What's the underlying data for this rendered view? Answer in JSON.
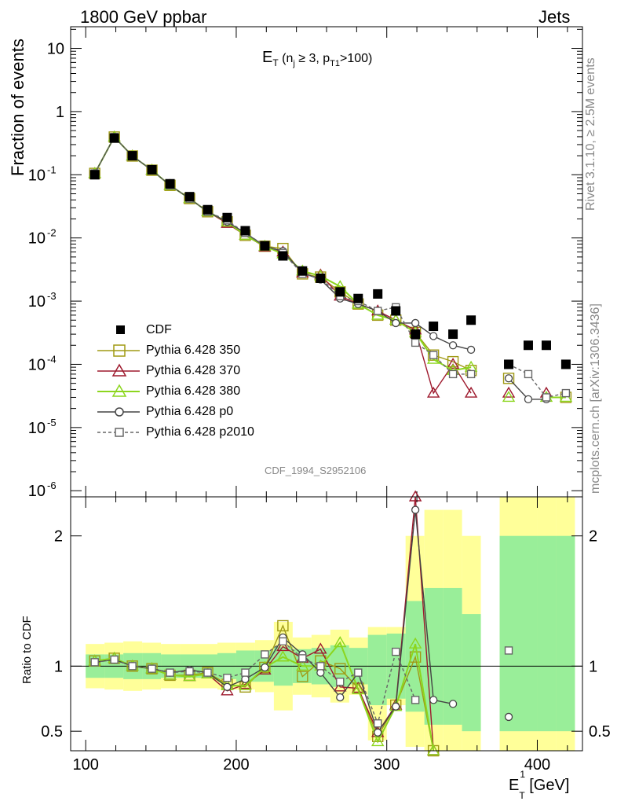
{
  "header": {
    "left_label": "1800 GeV ppbar",
    "right_label": "Jets"
  },
  "side": {
    "rivet": "Rivet 3.1.10, ≥ 2.5M events",
    "mcplots": "mcplots.cern.ch [arXiv:1306.3436]"
  },
  "chart_data": [
    {
      "type": "line",
      "panel": "main",
      "title": "E_T (n_j ≥ 3, p_T1 >100)",
      "title_parts": {
        "main": "E",
        "sub1": "T",
        "paren_open": " (n",
        "sub2": "j",
        "mid": " ≥ 3, p",
        "sub3": "T1",
        "close": ">100)"
      },
      "ylabel": "Fraction of events",
      "watermark": "CDF_1994_S2952106",
      "ylog": true,
      "ylim": [
        8e-07,
        22
      ],
      "xlim": [
        90,
        430
      ],
      "yticks": [
        {
          "v": 10,
          "label": "10"
        },
        {
          "v": 1,
          "label": "1"
        },
        {
          "v": 0.1,
          "label": "10",
          "exp": "-1"
        },
        {
          "v": 0.01,
          "label": "10",
          "exp": "-2"
        },
        {
          "v": 0.001,
          "label": "10",
          "exp": "-3"
        },
        {
          "v": 0.0001,
          "label": "10",
          "exp": "-4"
        },
        {
          "v": 1e-05,
          "label": "10",
          "exp": "-5"
        },
        {
          "v": 1e-06,
          "label": "10",
          "exp": "-6"
        }
      ],
      "x": [
        106,
        119,
        131,
        144,
        156,
        169,
        181,
        194,
        206,
        219,
        231,
        244,
        256,
        269,
        281,
        294,
        306,
        319,
        331,
        344,
        356,
        369,
        381,
        394,
        406,
        419
      ],
      "data": {
        "name": "CDF",
        "values": [
          0.1,
          0.38,
          0.2,
          0.12,
          0.072,
          0.045,
          0.028,
          0.021,
          0.013,
          0.0075,
          0.0052,
          0.003,
          0.0023,
          0.0014,
          0.0011,
          0.0013,
          0.0007,
          0.0003,
          0.0004,
          0.0003,
          0.0005,
          null,
          0.0001,
          0.0002,
          0.0002,
          0.0001
        ]
      },
      "series": [
        {
          "name": "Pythia 6.428 350",
          "color": "#a09a14",
          "marker": "square-open",
          "dash": false,
          "values": [
            0.105,
            0.395,
            0.198,
            0.118,
            0.068,
            0.042,
            0.026,
            0.018,
            0.011,
            0.0074,
            0.0068,
            0.0027,
            0.0024,
            0.0014,
            0.0009,
            0.0006,
            0.0005,
            0.00032,
            0.00014,
            0.00011,
            8e-05,
            null,
            6e-05,
            null,
            null,
            3e-05
          ]
        },
        {
          "name": "Pythia 6.428 370",
          "color": "#9e1a2e",
          "marker": "triangle-open",
          "dash": false,
          "values": [
            0.105,
            0.395,
            0.198,
            0.118,
            0.068,
            0.042,
            0.026,
            0.017,
            0.011,
            0.0072,
            0.006,
            0.0028,
            0.0026,
            0.0012,
            0.0009,
            0.0007,
            0.0005,
            0.00035,
            3.5e-05,
            0.0001,
            3.5e-05,
            null,
            3.5e-05,
            null,
            3.5e-05,
            null
          ]
        },
        {
          "name": "Pythia 6.428 380",
          "color": "#8cd61e",
          "marker": "triangle-open",
          "dash": false,
          "values": [
            0.105,
            0.395,
            0.198,
            0.118,
            0.068,
            0.042,
            0.026,
            0.018,
            0.011,
            0.0074,
            0.0056,
            0.003,
            0.0025,
            0.0017,
            0.0009,
            0.0006,
            0.0005,
            0.00032,
            0.00012,
            8e-05,
            9e-05,
            null,
            3e-05,
            null,
            3e-05,
            3e-05
          ]
        },
        {
          "name": "Pythia 6.428 p0",
          "color": "#444444",
          "marker": "circle-open",
          "dash": false,
          "values": [
            0.105,
            0.395,
            0.198,
            0.118,
            0.068,
            0.042,
            0.026,
            0.018,
            0.012,
            0.0074,
            0.0062,
            0.0028,
            0.0022,
            0.0011,
            0.0009,
            0.0007,
            0.00045,
            0.00045,
            0.00028,
            0.0002,
            0.00017,
            null,
            6e-05,
            2.8e-05,
            2.8e-05,
            null
          ]
        },
        {
          "name": "Pythia 6.428 p2010",
          "color": "#666666",
          "marker": "square-open",
          "dash": true,
          "values": [
            0.105,
            0.395,
            0.198,
            0.118,
            0.068,
            0.042,
            0.026,
            0.019,
            0.012,
            0.0076,
            0.0058,
            0.0027,
            0.0023,
            0.0012,
            0.001,
            0.0007,
            0.0008,
            0.00022,
            0.00014,
            7e-05,
            7e-05,
            null,
            0.0001,
            7e-05,
            3e-05,
            3.5e-05
          ]
        }
      ]
    },
    {
      "type": "line",
      "panel": "ratio",
      "ylabel": "Ratio to CDF",
      "xlabel": "E_T^1 [GeV]",
      "xlabel_parts": {
        "main": "E",
        "sup": "1",
        "sub": "T",
        "unit": " [GeV]"
      },
      "ylim": [
        0.35,
        2.3
      ],
      "xlim": [
        90,
        430
      ],
      "xticks": [
        100,
        200,
        300,
        400
      ],
      "yticks": [
        {
          "v": 0.5,
          "label": "0.5"
        },
        {
          "v": 1,
          "label": "1"
        },
        {
          "v": 2,
          "label": "2"
        }
      ],
      "band_edges": [
        100,
        112.5,
        125,
        137.5,
        150,
        162.5,
        175,
        187.5,
        200,
        212.5,
        225,
        237.5,
        250,
        262.5,
        275,
        287.5,
        300,
        312.5,
        325,
        337.5,
        350,
        362.5,
        375,
        387.5,
        400,
        412.5,
        425
      ],
      "band_yellow": [
        [
          0.83,
          1.17
        ],
        [
          0.82,
          1.18
        ],
        [
          0.81,
          1.19
        ],
        [
          0.82,
          1.18
        ],
        [
          0.83,
          1.17
        ],
        [
          0.83,
          1.17
        ],
        [
          0.83,
          1.17
        ],
        [
          0.82,
          1.18
        ],
        [
          0.82,
          1.18
        ],
        [
          0.8,
          1.2
        ],
        [
          0.66,
          1.34
        ],
        [
          0.78,
          1.22
        ],
        [
          0.76,
          1.24
        ],
        [
          0.72,
          1.28
        ],
        [
          0.78,
          1.22
        ],
        [
          0.43,
          1.3
        ],
        [
          0.7,
          1.3
        ],
        [
          0.38,
          2.0
        ],
        [
          0.35,
          2.2
        ],
        [
          0.35,
          2.2
        ],
        [
          0.35,
          2.0
        ],
        [
          null,
          null
        ],
        [
          0.35,
          2.3
        ],
        [
          0.35,
          2.3
        ],
        [
          0.35,
          2.3
        ],
        [
          0.35,
          2.3
        ]
      ],
      "band_green": [
        [
          0.91,
          1.09
        ],
        [
          0.91,
          1.09
        ],
        [
          0.9,
          1.1
        ],
        [
          0.9,
          1.1
        ],
        [
          0.91,
          1.09
        ],
        [
          0.91,
          1.09
        ],
        [
          0.91,
          1.09
        ],
        [
          0.9,
          1.1
        ],
        [
          0.88,
          1.12
        ],
        [
          0.88,
          1.12
        ],
        [
          0.85,
          1.15
        ],
        [
          0.87,
          1.13
        ],
        [
          0.86,
          1.14
        ],
        [
          0.84,
          1.16
        ],
        [
          0.86,
          1.14
        ],
        [
          0.7,
          1.24
        ],
        [
          0.75,
          1.25
        ],
        [
          0.65,
          1.5
        ],
        [
          0.55,
          1.6
        ],
        [
          0.55,
          1.6
        ],
        [
          0.5,
          1.4
        ],
        [
          null,
          null
        ],
        [
          0.5,
          2.0
        ],
        [
          0.5,
          2.0
        ],
        [
          0.5,
          2.0
        ],
        [
          0.5,
          2.0
        ]
      ],
      "series": [
        {
          "name": "Pythia 6.428 350",
          "values": [
            1.04,
            1.06,
            1.0,
            0.98,
            0.93,
            0.93,
            0.95,
            0.86,
            0.84,
            0.99,
            1.31,
            0.92,
            1.04,
            0.98,
            0.83,
            0.46,
            0.7,
            1.07,
            0.35,
            null,
            null,
            null,
            null,
            null,
            null,
            null
          ]
        },
        {
          "name": "Pythia 6.428 370",
          "values": [
            1.04,
            1.06,
            1.0,
            0.98,
            0.93,
            0.92,
            0.94,
            0.81,
            0.86,
            0.97,
            1.15,
            1.06,
            1.13,
            0.84,
            0.83,
            0.49,
            0.7,
            2.3,
            0.35,
            null,
            null,
            null,
            null,
            null,
            null,
            null
          ]
        },
        {
          "name": "Pythia 6.428 380",
          "values": [
            1.04,
            1.06,
            1.0,
            0.98,
            0.93,
            0.92,
            0.94,
            0.85,
            0.85,
            0.99,
            1.07,
            1.0,
            1.0,
            1.18,
            0.82,
            0.42,
            0.69,
            1.17,
            0.35,
            null,
            null,
            null,
            null,
            null,
            null,
            null
          ]
        },
        {
          "name": "Pythia 6.428 p0",
          "values": [
            1.03,
            1.05,
            1.0,
            0.98,
            0.95,
            0.97,
            0.95,
            0.84,
            0.9,
            0.99,
            1.22,
            1.09,
            0.95,
            0.76,
            0.95,
            0.49,
            0.69,
            2.2,
            0.74,
            0.71,
            null,
            null,
            0.61,
            null,
            null,
            null
          ]
        },
        {
          "name": "Pythia 6.428 p2010",
          "values": [
            1.03,
            1.05,
            1.0,
            0.98,
            0.95,
            0.96,
            0.95,
            0.91,
            0.95,
            1.09,
            1.19,
            1.06,
            1.0,
            0.88,
            0.95,
            0.56,
            1.11,
            0.74,
            null,
            null,
            null,
            null,
            1.12,
            null,
            null,
            null
          ]
        }
      ]
    }
  ]
}
